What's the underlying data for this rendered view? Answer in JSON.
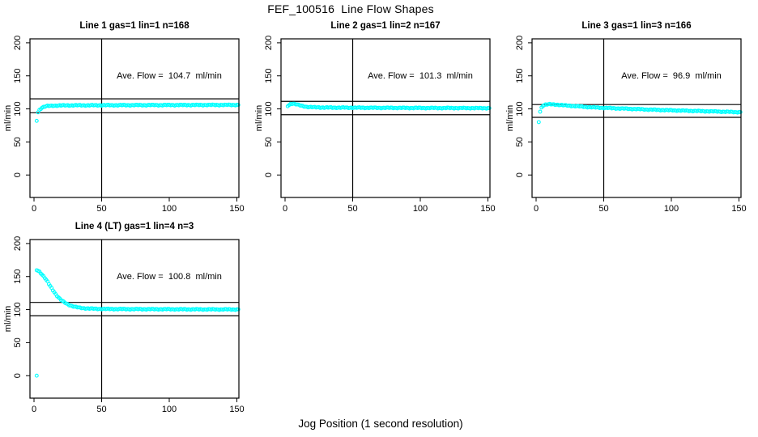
{
  "page": {
    "title": "FEF_100516  Line Flow Shapes",
    "xlabel": "Jog Position (1 second resolution)",
    "background_color": "#ffffff",
    "point_color": "#00ffff",
    "axis_color": "#000000"
  },
  "chart_data": [
    {
      "type": "scatter",
      "title": "Line 1 gas=1 lin=1 n=168",
      "annotation": "Ave. Flow =  104.7  ml/min",
      "ave_flow": 104.7,
      "n": 168,
      "ylabel": "ml/min",
      "x_ticks": [
        0,
        50,
        100,
        150
      ],
      "y_ticks": [
        0,
        50,
        100,
        150,
        200
      ],
      "xlim": [
        -3,
        151.5
      ],
      "ylim": [
        -34,
        206
      ],
      "vline_x": 50,
      "hlines": [
        115.2,
        94.2
      ],
      "x_start": 3,
      "x_end": 151,
      "anchors": [
        [
          3,
          95
        ],
        [
          4,
          98.5
        ],
        [
          5,
          100.5
        ],
        [
          6,
          102
        ],
        [
          8,
          103.5
        ],
        [
          10,
          104.3
        ],
        [
          15,
          105
        ],
        [
          25,
          105.3
        ],
        [
          50,
          105.5
        ],
        [
          100,
          105.8
        ],
        [
          151,
          106
        ]
      ],
      "outliers": [
        [
          2,
          82
        ]
      ]
    },
    {
      "type": "scatter",
      "title": "Line 2 gas=1 lin=2 n=167",
      "annotation": "Ave. Flow =  101.3  ml/min",
      "ave_flow": 101.3,
      "n": 167,
      "ylabel": "ml/min",
      "x_ticks": [
        0,
        50,
        100,
        150
      ],
      "y_ticks": [
        0,
        50,
        100,
        150,
        200
      ],
      "xlim": [
        -3,
        151.5
      ],
      "ylim": [
        -34,
        206
      ],
      "vline_x": 50,
      "hlines": [
        111.4,
        91.2
      ],
      "x_start": 3,
      "x_end": 151,
      "anchors": [
        [
          3,
          106
        ],
        [
          4,
          107.5
        ],
        [
          6,
          108
        ],
        [
          8,
          107
        ],
        [
          10,
          105.8
        ],
        [
          13,
          104.3
        ],
        [
          16,
          103.2
        ],
        [
          20,
          102.5
        ],
        [
          30,
          102
        ],
        [
          50,
          101.8
        ],
        [
          100,
          101.4
        ],
        [
          151,
          101.1
        ]
      ],
      "outliers": [
        [
          2,
          104
        ]
      ]
    },
    {
      "type": "scatter",
      "title": "Line 3 gas=1 lin=3 n=166",
      "annotation": "Ave. Flow =  96.9  ml/min",
      "ave_flow": 96.9,
      "n": 166,
      "ylabel": "ml/min",
      "x_ticks": [
        0,
        50,
        100,
        150
      ],
      "y_ticks": [
        0,
        50,
        100,
        150,
        200
      ],
      "xlim": [
        -3,
        151.5
      ],
      "ylim": [
        -34,
        206
      ],
      "vline_x": 50,
      "hlines": [
        106.6,
        87.2
      ],
      "x_start": 3,
      "x_end": 151,
      "anchors": [
        [
          3,
          96
        ],
        [
          4,
          102
        ],
        [
          5,
          105
        ],
        [
          7,
          106.5
        ],
        [
          10,
          107
        ],
        [
          15,
          106.5
        ],
        [
          20,
          105.5
        ],
        [
          30,
          104
        ],
        [
          40,
          102.5
        ],
        [
          50,
          101.5
        ],
        [
          70,
          100
        ],
        [
          90,
          98.5
        ],
        [
          110,
          97.3
        ],
        [
          130,
          96.2
        ],
        [
          151,
          95
        ]
      ],
      "outliers": [
        [
          2,
          80
        ]
      ]
    },
    {
      "type": "scatter",
      "title": "Line 4 (LT) gas=1 lin=4 n=3",
      "annotation": "Ave. Flow =  100.8  ml/min",
      "ave_flow": 100.8,
      "n": 3,
      "ylabel": "ml/min",
      "x_ticks": [
        0,
        50,
        100,
        150
      ],
      "y_ticks": [
        0,
        50,
        100,
        150,
        200
      ],
      "xlim": [
        -3,
        151.5
      ],
      "ylim": [
        -34,
        206
      ],
      "vline_x": 50,
      "hlines": [
        110.9,
        90.7
      ],
      "x_start": 2,
      "x_end": 151,
      "anchors": [
        [
          2,
          160
        ],
        [
          4,
          157.5
        ],
        [
          6,
          153
        ],
        [
          8,
          148
        ],
        [
          10,
          142
        ],
        [
          12,
          135.5
        ],
        [
          14,
          129.5
        ],
        [
          16,
          123.5
        ],
        [
          18,
          118.5
        ],
        [
          20,
          114.5
        ],
        [
          22,
          111.5
        ],
        [
          24,
          109
        ],
        [
          26,
          107
        ],
        [
          28,
          105.5
        ],
        [
          30,
          104.3
        ],
        [
          33,
          103
        ],
        [
          36,
          102.2
        ],
        [
          40,
          101.6
        ],
        [
          45,
          101.2
        ],
        [
          50,
          101
        ],
        [
          60,
          100.8
        ],
        [
          80,
          100.6
        ],
        [
          100,
          100.5
        ],
        [
          125,
          100.3
        ],
        [
          151,
          100.2
        ]
      ],
      "outliers": [
        [
          2,
          0
        ]
      ]
    }
  ]
}
